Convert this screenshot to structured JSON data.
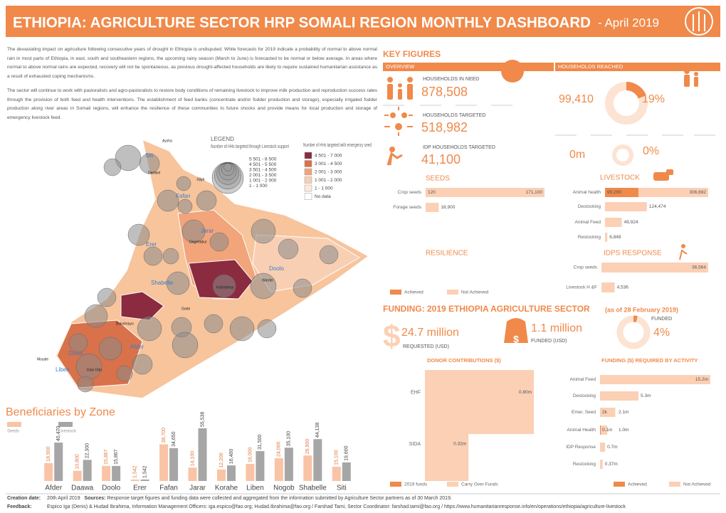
{
  "header": {
    "title": "ETHIOPIA: AGRICULTURE SECTOR HRP SOMALI REGION MONTHLY DASHBOARD",
    "date": "- April 2019"
  },
  "intro": [
    "The devastating impact on agriculture following consecutive years of drought in Ethiopia is undisputed. While forecasts for 2019 indicate a probability of normal to above normal rain in most parts of Ethiopia, in east, south and southeastern regions, the upcoming rainy season (March to June) is forecasted to be normal or below average. In areas where normal to above normal rains are expected, recovery will not be spontaneous, as previous drought-affected households are likely to require sustained humanitarian assistance as a result of exhausted coping mechanisms.",
    "The sector will continue to work with pastoralists and agro-pastoralists to restore body conditions of remaining livestock to improve milk production and reproduction success rates through the provision of both feed and health interventions. The establishment of feed banks (concentrate and/or fodder production and storage), especially irrigated fodder production along river areas in Somali regions, will enhance the resilience of these communities to future shocks and provide means for local production and storage of emergency livestock feed."
  ],
  "map": {
    "legend_title": "LEGEND",
    "circles_title": "Number of HHs targeted through Livestock support",
    "circle_classes": [
      "5 501 - 8 500",
      "4 501 - 5 500",
      "3 501 - 4 500",
      "2 001 - 3 500",
      "1 001 - 2 000",
      "1 - 1 000"
    ],
    "fill_title": "Number of HHs targeted with emergency seed",
    "fill_classes": [
      {
        "label": "4 501 - 7 000",
        "color": "#8b2b3f"
      },
      {
        "label": "3 001 - 4 500",
        "color": "#d9714a"
      },
      {
        "label": "2 001 - 3 000",
        "color": "#f2a47a"
      },
      {
        "label": "1 001 - 2 000",
        "color": "#f9cfb3"
      },
      {
        "label": "1 - 1 000",
        "color": "#fde9dc"
      },
      {
        "label": "No data",
        "color": "#ffffff"
      }
    ],
    "zones": [
      "Siti",
      "Fafan",
      "Jarar",
      "Erer",
      "Doolo",
      "Shabelle",
      "Afder",
      "Dawa",
      "Liben"
    ],
    "places": [
      "Aysha",
      "Dembel",
      "Jijiga",
      "Degehabur",
      "Kebridehar",
      "Warder",
      "Gode",
      "Bokolmayo",
      "Dolo Odo",
      "Moyale"
    ]
  },
  "key_figures": {
    "title": "KEY FIGURES",
    "overview": "OVERVIEW",
    "reached_title": "HOUSEHOLDS  REACHED",
    "items": [
      {
        "label": "HOUSEHOLDS IN NEED",
        "value": "878,508"
      },
      {
        "label": "HOUSEHOLDS TARGETED",
        "value": "518,982"
      },
      {
        "label": "IDP HOUSEHOLDS TARGETED",
        "value": "41,100"
      }
    ],
    "reached": [
      {
        "value": "99,410",
        "percent": 19,
        "percent_label": "19%"
      },
      {
        "value": "0m",
        "percent": 0,
        "percent_label": "0%"
      }
    ]
  },
  "resilience": "RESILIENCE",
  "funding": {
    "title": "FUNDING: 2019 ETHIOPIA AGRICULTURE SECTOR",
    "date": "(as of 28 February 2019)",
    "funded_title": "FUNDED",
    "requested": "24.7 million",
    "requested_label": "REQUESTED (USD)",
    "funded": "1.1 million",
    "funded_label": "FUNDED (USD)",
    "percent": 4,
    "percent_label": "4%"
  },
  "chart_data": [
    {
      "type": "bar",
      "title": "SEEDS",
      "categories": [
        "Crop seeds",
        "Forage seeds"
      ],
      "series": [
        {
          "color": "#f0894a",
          "values": [
            120,
            null
          ],
          "value_labels": [
            "120",
            null
          ]
        },
        {
          "color": "#fbd0b5",
          "values": [
            171100,
            18900
          ],
          "value_labels": [
            "171,100",
            "18,900"
          ]
        }
      ]
    },
    {
      "type": "bar",
      "title": "LIVESTOCK",
      "categories": [
        "Animal health",
        "Destocking",
        "Animal Feed",
        "Restocking"
      ],
      "series": [
        {
          "color": "#f0894a",
          "values": [
            99290,
            null,
            null,
            null
          ],
          "value_labels": [
            "99,290",
            null,
            null,
            null
          ]
        },
        {
          "color": "#fbd0b5",
          "values": [
            306692,
            124474,
            49924,
            6848
          ],
          "value_labels": [
            "306,692",
            "124,474",
            "49,924",
            "6,848"
          ]
        }
      ]
    },
    {
      "type": "bar",
      "title": "IDPS RESPONSE",
      "categories": [
        "Crop seeds",
        "Livestock H &F"
      ],
      "series": [
        {
          "name": "Achieved",
          "color": "#f0894a",
          "values": [
            null,
            null
          ],
          "value_labels": [
            null,
            null
          ]
        },
        {
          "name": "Not Achieved",
          "color": "#fbd0b5",
          "values": [
            36564,
            4536
          ],
          "value_labels": [
            "36,564",
            "4,536"
          ]
        }
      ]
    },
    {
      "type": "column",
      "title": "Beneficiaries by Zone",
      "categories": [
        "Afder",
        "Daawa",
        "Doolo",
        "Erer",
        "Fafan",
        "Jarar",
        "Korahe",
        "Liben",
        "Nogob",
        "Shabelle",
        "Siti"
      ],
      "series": [
        {
          "name": "Seeds",
          "color": "#f9c4a5",
          "values": [
            18900,
            10800,
            15867,
            1542,
            38700,
            14100,
            12200,
            18000,
            24000,
            26900,
            15100
          ],
          "value_labels": [
            "18,900",
            "10,800",
            "15,867",
            "1,542",
            "38,700",
            "14,100",
            "12,200",
            "18,000",
            "24,000",
            "26,900",
            "15,100"
          ]
        },
        {
          "name": "Livestock",
          "color": "#a6a6a6",
          "values": [
            40470,
            22300,
            15867,
            1542,
            34650,
            55538,
            16400,
            31500,
            35100,
            44138,
            19600
          ],
          "value_labels": [
            "40,470",
            "22,300",
            "15,867",
            "1,542",
            "34,650",
            "55,538",
            "16,400",
            "31,500",
            "35,100",
            "44,138",
            "19,600"
          ]
        }
      ]
    },
    {
      "type": "box",
      "title": "DONOR CONTRIBUTIONS ($)",
      "categories": [
        "EHF",
        "SIDA"
      ],
      "series": [
        {
          "name": "2019 funds",
          "color": "#f0894a",
          "values": [
            null,
            null
          ],
          "value_labels": [
            null,
            null
          ]
        },
        {
          "name": "Carry Over Funds",
          "color": "#fbd0b5",
          "values": [
            0.8,
            0.32
          ],
          "value_labels": [
            "0.80m",
            "0.32m"
          ]
        }
      ]
    },
    {
      "type": "bar",
      "title": "FUNDING ($) REQUIRED BY ACTIVITY",
      "categories": [
        "Animal Feed",
        "Destocking",
        "Emer. Seed",
        "Animal Health",
        "IDP Response",
        "Restocking"
      ],
      "series": [
        {
          "name": "Achieved",
          "color": "#f0894a",
          "values": [
            null,
            null,
            0.002,
            0.1,
            null,
            null
          ],
          "value_labels": [
            null,
            null,
            "2k",
            "0.1m",
            null,
            null
          ]
        },
        {
          "name": "Not Achieved",
          "color": "#fbd0b5",
          "values": [
            15.2,
            5.3,
            2.1,
            1.0,
            0.7,
            0.37
          ],
          "value_labels": [
            "15.2m",
            "5.3m",
            "2.1m",
            "1.0m",
            "0.7m",
            "0.37m"
          ]
        }
      ]
    }
  ],
  "footer": {
    "creation_label": "Creation date:",
    "creation": "20th April 2019",
    "sources_label": "Sources:",
    "sources": "Response target figures and funding data were collected and aggregated from the information submitted by Agriculture Sector partners as of 30 March 2019.",
    "feedback_label": "Feedback:",
    "feedback": "Espico Iga (Denis) & Hudad Ibrahima, Information Management Officers: iga.espico@fao.org; Hudad.Ibrahima@fao.org / Farshad Tami, Sector Coordinator: farshad.tami@fao.org / https://www.humanitarianresponse.info/en/operations/ethiopia/agriculture-livestock"
  }
}
